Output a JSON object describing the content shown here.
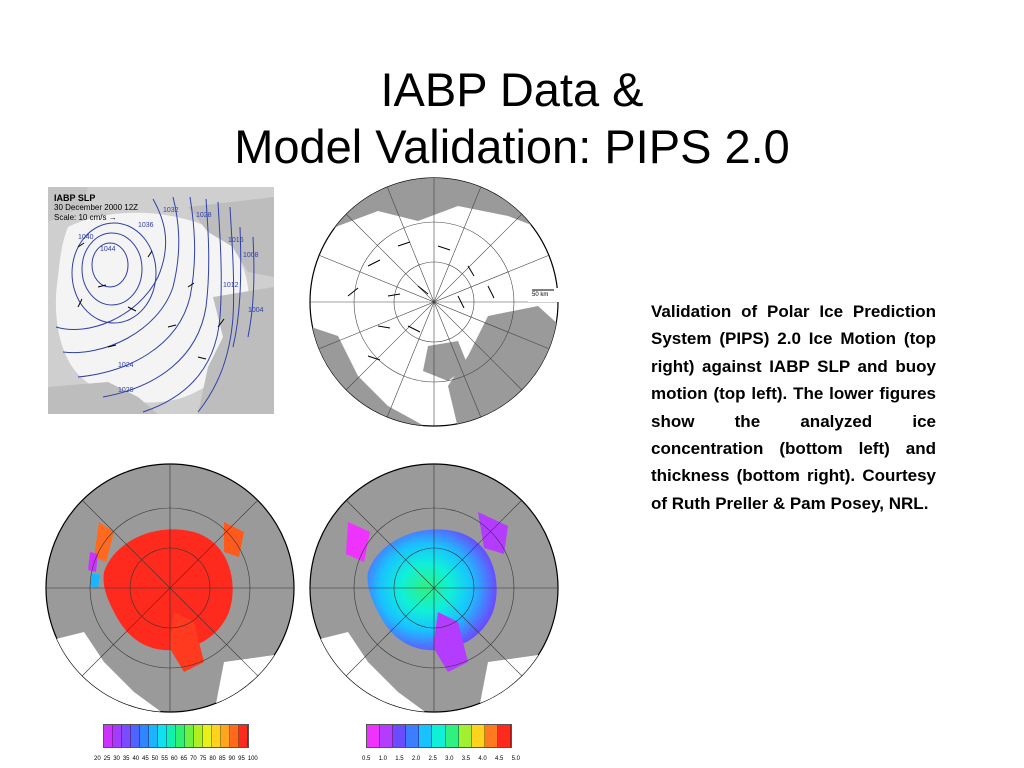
{
  "slide": {
    "title_line1": "IABP Data &",
    "title_line2": "Model Validation: PIPS 2.0",
    "caption": "Validation of Polar Ice Prediction System (PIPS) 2.0 Ice Motion (top right) against IABP SLP and buoy motion (top left). The lower figures show the analyzed ice concentration (bottom left) and thickness (bottom right). Courtesy of Ruth Preller & Pam Posey, NRL."
  },
  "slp_figure": {
    "title": "IABP SLP",
    "date": "30 December 2000",
    "hour": "12Z",
    "scale": "Scale: 10 cm/s",
    "contour_labels": [
      "1044",
      "1040",
      "1036",
      "1032",
      "1028",
      "1024",
      "1020",
      "1016",
      "1012",
      "1008",
      "1004"
    ]
  },
  "motion_figure": {
    "scale_label": "50 km"
  },
  "concentration_colorbar": {
    "labels": [
      "20",
      "25",
      "30",
      "35",
      "40",
      "45",
      "50",
      "55",
      "60",
      "65",
      "70",
      "75",
      "80",
      "85",
      "90",
      "95",
      "100"
    ],
    "colors": [
      "#cc33ff",
      "#a23cff",
      "#7a4cff",
      "#4f63ff",
      "#2f86ff",
      "#19b6ff",
      "#10e0f0",
      "#10f0b0",
      "#30f070",
      "#70f040",
      "#b0f020",
      "#e8f018",
      "#ffd21e",
      "#ffa51e",
      "#ff6a1e",
      "#ff2a1e"
    ]
  },
  "thickness_colorbar": {
    "labels": [
      "0.5",
      "1.0",
      "1.5",
      "2.0",
      "2.5",
      "3.0",
      "3.5",
      "4.0",
      "4.5",
      "5.0"
    ],
    "colors": [
      "#ee33ff",
      "#b43cff",
      "#6a4cff",
      "#3d7dff",
      "#19c2ff",
      "#10f0d8",
      "#30f080",
      "#a0f030",
      "#ffd21e",
      "#ff7a1e",
      "#ff2a1e"
    ]
  },
  "colors": {
    "land": "#9a9a9a",
    "ocean": "#ffffff",
    "ice_conc": "#ff2a1e",
    "slp_contour": "#3040a8"
  }
}
